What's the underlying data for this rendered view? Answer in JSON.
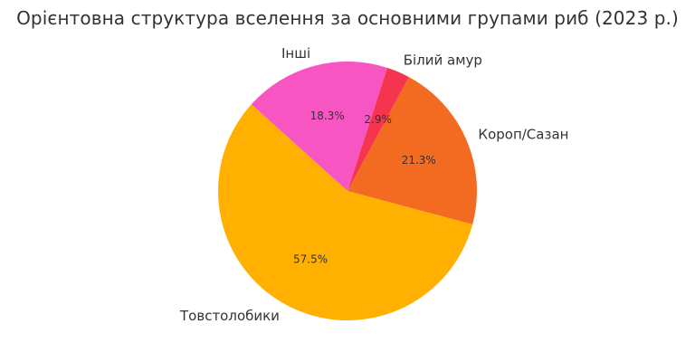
{
  "chart_data": {
    "type": "pie",
    "title": "Орієнтовна структура вселення за основними групами риб (2023 р.)",
    "categories": [
      "Короп/Сазан",
      "Білий амур",
      "Інші",
      "Товстолобики"
    ],
    "values": [
      21.3,
      2.9,
      18.3,
      57.5
    ],
    "labels_pct": [
      "21.3%",
      "2.9%",
      "18.3%",
      "57.5%"
    ],
    "colors": [
      "#f26b21",
      "#f5344f",
      "#f756c2",
      "#ffb000"
    ],
    "start_angle_deg": -15,
    "direction": "counterclockwise",
    "grid": false,
    "legend": "none"
  }
}
